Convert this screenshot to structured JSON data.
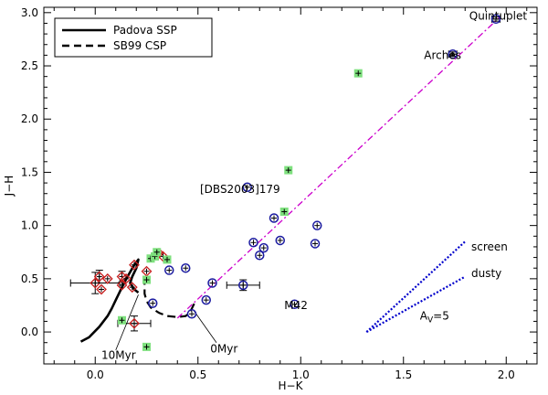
{
  "chart_data": {
    "type": "scatter",
    "xlabel": "H−K",
    "ylabel": "J−H",
    "xlim": [
      -0.25,
      2.15
    ],
    "ylim": [
      -0.3,
      3.05
    ],
    "x_ticks": [
      0.0,
      0.5,
      1.0,
      1.5,
      2.0
    ],
    "x_tick_labels": [
      "0.0",
      "0.5",
      "1.0",
      "1.5",
      "2.0"
    ],
    "y_ticks": [
      0.0,
      0.5,
      1.0,
      1.5,
      2.0,
      2.5,
      3.0
    ],
    "y_tick_labels": [
      "0.0",
      "0.5",
      "1.0",
      "1.5",
      "2.0",
      "2.5",
      "3.0"
    ],
    "legend": {
      "placement": "top-left",
      "entries": [
        {
          "label": "Padova SSP",
          "style": "solid"
        },
        {
          "label": "SB99 CSP",
          "style": "dashed"
        }
      ]
    },
    "series": [
      {
        "name": "Padova SSP",
        "kind": "line",
        "color": "#000000",
        "points": [
          [
            -0.07,
            -0.09
          ],
          [
            -0.03,
            -0.05
          ],
          [
            0.02,
            0.05
          ],
          [
            0.06,
            0.15
          ],
          [
            0.08,
            0.22
          ],
          [
            0.1,
            0.3
          ],
          [
            0.12,
            0.38
          ],
          [
            0.14,
            0.46
          ],
          [
            0.16,
            0.53
          ],
          [
            0.19,
            0.63
          ],
          [
            0.21,
            0.68
          ],
          [
            0.2,
            0.6
          ],
          [
            0.18,
            0.52
          ],
          [
            0.17,
            0.46
          ],
          [
            0.19,
            0.4
          ],
          [
            0.21,
            0.37
          ]
        ]
      },
      {
        "name": "SB99 CSP",
        "kind": "dashed-line",
        "color": "#000000",
        "points": [
          [
            0.24,
            0.52
          ],
          [
            0.24,
            0.44
          ],
          [
            0.24,
            0.36
          ],
          [
            0.25,
            0.29
          ],
          [
            0.27,
            0.23
          ],
          [
            0.31,
            0.18
          ],
          [
            0.35,
            0.15
          ],
          [
            0.4,
            0.14
          ],
          [
            0.44,
            0.15
          ],
          [
            0.46,
            0.18
          ],
          [
            0.47,
            0.22
          ],
          [
            0.48,
            0.26
          ],
          [
            0.49,
            0.3
          ]
        ]
      },
      {
        "name": "Reddening vector",
        "kind": "dashdot-line",
        "color": "#cc00cc",
        "points": [
          [
            0.4,
            0.13
          ],
          [
            1.97,
            2.96
          ]
        ]
      },
      {
        "name": "Extinction screen",
        "kind": "dotted-line",
        "color": "#0000cc",
        "points": [
          [
            1.32,
            0.0
          ],
          [
            1.8,
            0.85
          ]
        ]
      },
      {
        "name": "Extinction dusty",
        "kind": "dotted-line",
        "color": "#0000cc",
        "points": [
          [
            1.32,
            0.0
          ],
          [
            1.8,
            0.52
          ]
        ]
      },
      {
        "name": "Blue circles",
        "kind": "circle",
        "color": "#1a1aa0",
        "points": [
          [
            1.95,
            2.94,
            0.02,
            0.02
          ],
          [
            1.74,
            2.61,
            0.02,
            0.02
          ],
          [
            0.74,
            1.36,
            0.0,
            0.0
          ],
          [
            0.87,
            1.07,
            0.0,
            0.0
          ],
          [
            1.08,
            1.0,
            0.0,
            0.0
          ],
          [
            0.77,
            0.84,
            0.0,
            0.0
          ],
          [
            0.9,
            0.86,
            0.0,
            0.0
          ],
          [
            1.07,
            0.83,
            0.0,
            0.0
          ],
          [
            0.82,
            0.79,
            0.0,
            0.0
          ],
          [
            0.8,
            0.72,
            0.0,
            0.0
          ],
          [
            0.44,
            0.6,
            0.0,
            0.0
          ],
          [
            0.36,
            0.58,
            0.0,
            0.0
          ],
          [
            0.57,
            0.46,
            0.0,
            0.0
          ],
          [
            0.72,
            0.44,
            0.08,
            0.05
          ],
          [
            0.54,
            0.3,
            0.0,
            0.0
          ],
          [
            0.28,
            0.27,
            0.0,
            0.0
          ],
          [
            0.97,
            0.26,
            0.0,
            0.0
          ],
          [
            0.47,
            0.17,
            0.0,
            0.0
          ]
        ]
      },
      {
        "name": "Red diamonds",
        "kind": "diamond",
        "color": "#c81e1e",
        "points": [
          [
            0.0,
            0.46,
            0.12,
            0.1
          ],
          [
            0.02,
            0.52,
            0.0,
            0.06
          ],
          [
            0.06,
            0.5,
            0.0,
            0.0
          ],
          [
            0.03,
            0.4,
            0.0,
            0.0
          ],
          [
            0.13,
            0.52,
            0.0,
            0.05
          ],
          [
            0.15,
            0.5,
            0.0,
            0.0
          ],
          [
            0.13,
            0.44,
            0.0,
            0.0
          ],
          [
            0.19,
            0.63,
            0.0,
            0.0
          ],
          [
            0.18,
            0.42,
            0.0,
            0.0
          ],
          [
            0.25,
            0.57,
            0.0,
            0.0
          ],
          [
            0.31,
            0.74,
            0.0,
            0.0
          ],
          [
            0.33,
            0.71,
            0.0,
            0.0
          ],
          [
            0.19,
            0.08,
            0.08,
            0.07
          ]
        ]
      },
      {
        "name": "Green squares",
        "kind": "square",
        "color": "#7ee07e",
        "points": [
          [
            1.28,
            2.43
          ],
          [
            0.94,
            1.52
          ],
          [
            0.92,
            1.13
          ],
          [
            0.25,
            0.49
          ],
          [
            0.27,
            0.69
          ],
          [
            0.29,
            0.71
          ],
          [
            0.3,
            0.75
          ],
          [
            0.35,
            0.68
          ],
          [
            0.13,
            0.11
          ],
          [
            0.25,
            -0.14
          ]
        ]
      }
    ],
    "annotations": [
      {
        "text": "Quintuplet",
        "x": 1.82,
        "y": 2.97
      },
      {
        "text": "Arches",
        "x": 1.6,
        "y": 2.6
      },
      {
        "text": "[DBS2003]179",
        "x": 0.51,
        "y": 1.34
      },
      {
        "text": "M42",
        "x": 0.92,
        "y": 0.25
      },
      {
        "text": "screen",
        "x": 1.83,
        "y": 0.8
      },
      {
        "text": "dusty",
        "x": 1.83,
        "y": 0.55
      },
      {
        "text": "A",
        "sub": "V",
        "suffix": "=5",
        "x": 1.58,
        "y": 0.15
      },
      {
        "text": "10Myr",
        "x": 0.03,
        "y": -0.22
      },
      {
        "text": "0Myr",
        "x": 0.56,
        "y": -0.16
      }
    ],
    "pointers": [
      {
        "from": [
          0.1,
          -0.17
        ],
        "to": [
          0.21,
          0.35
        ]
      },
      {
        "from": [
          0.59,
          -0.1
        ],
        "to": [
          0.48,
          0.2
        ]
      }
    ]
  }
}
